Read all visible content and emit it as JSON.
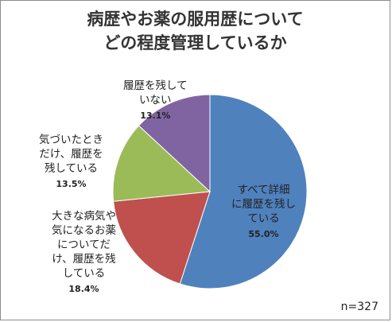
{
  "chart_data": {
    "type": "pie",
    "title_lines": [
      "病歴やお薬の服用歴について",
      "どの程度管理しているか"
    ],
    "slices": [
      {
        "label": "すべて詳細\nに履歴を残し\nている",
        "value": 55.0,
        "pct_label": "55.0%",
        "color": "#4F81BD"
      },
      {
        "label": "大きな病気や\n気になるお薬\nについてだ\nけ、履歴を残\nしている",
        "value": 18.4,
        "pct_label": "18.4%",
        "color": "#C0504D"
      },
      {
        "label": "気づいたとき\nだけ、履歴を\n残している",
        "value": 13.5,
        "pct_label": "13.5%",
        "color": "#9BBB59"
      },
      {
        "label": "履歴を残して\nいない",
        "value": 13.1,
        "pct_label": "13.1%",
        "color": "#8064A2"
      }
    ],
    "note": "n=327"
  }
}
